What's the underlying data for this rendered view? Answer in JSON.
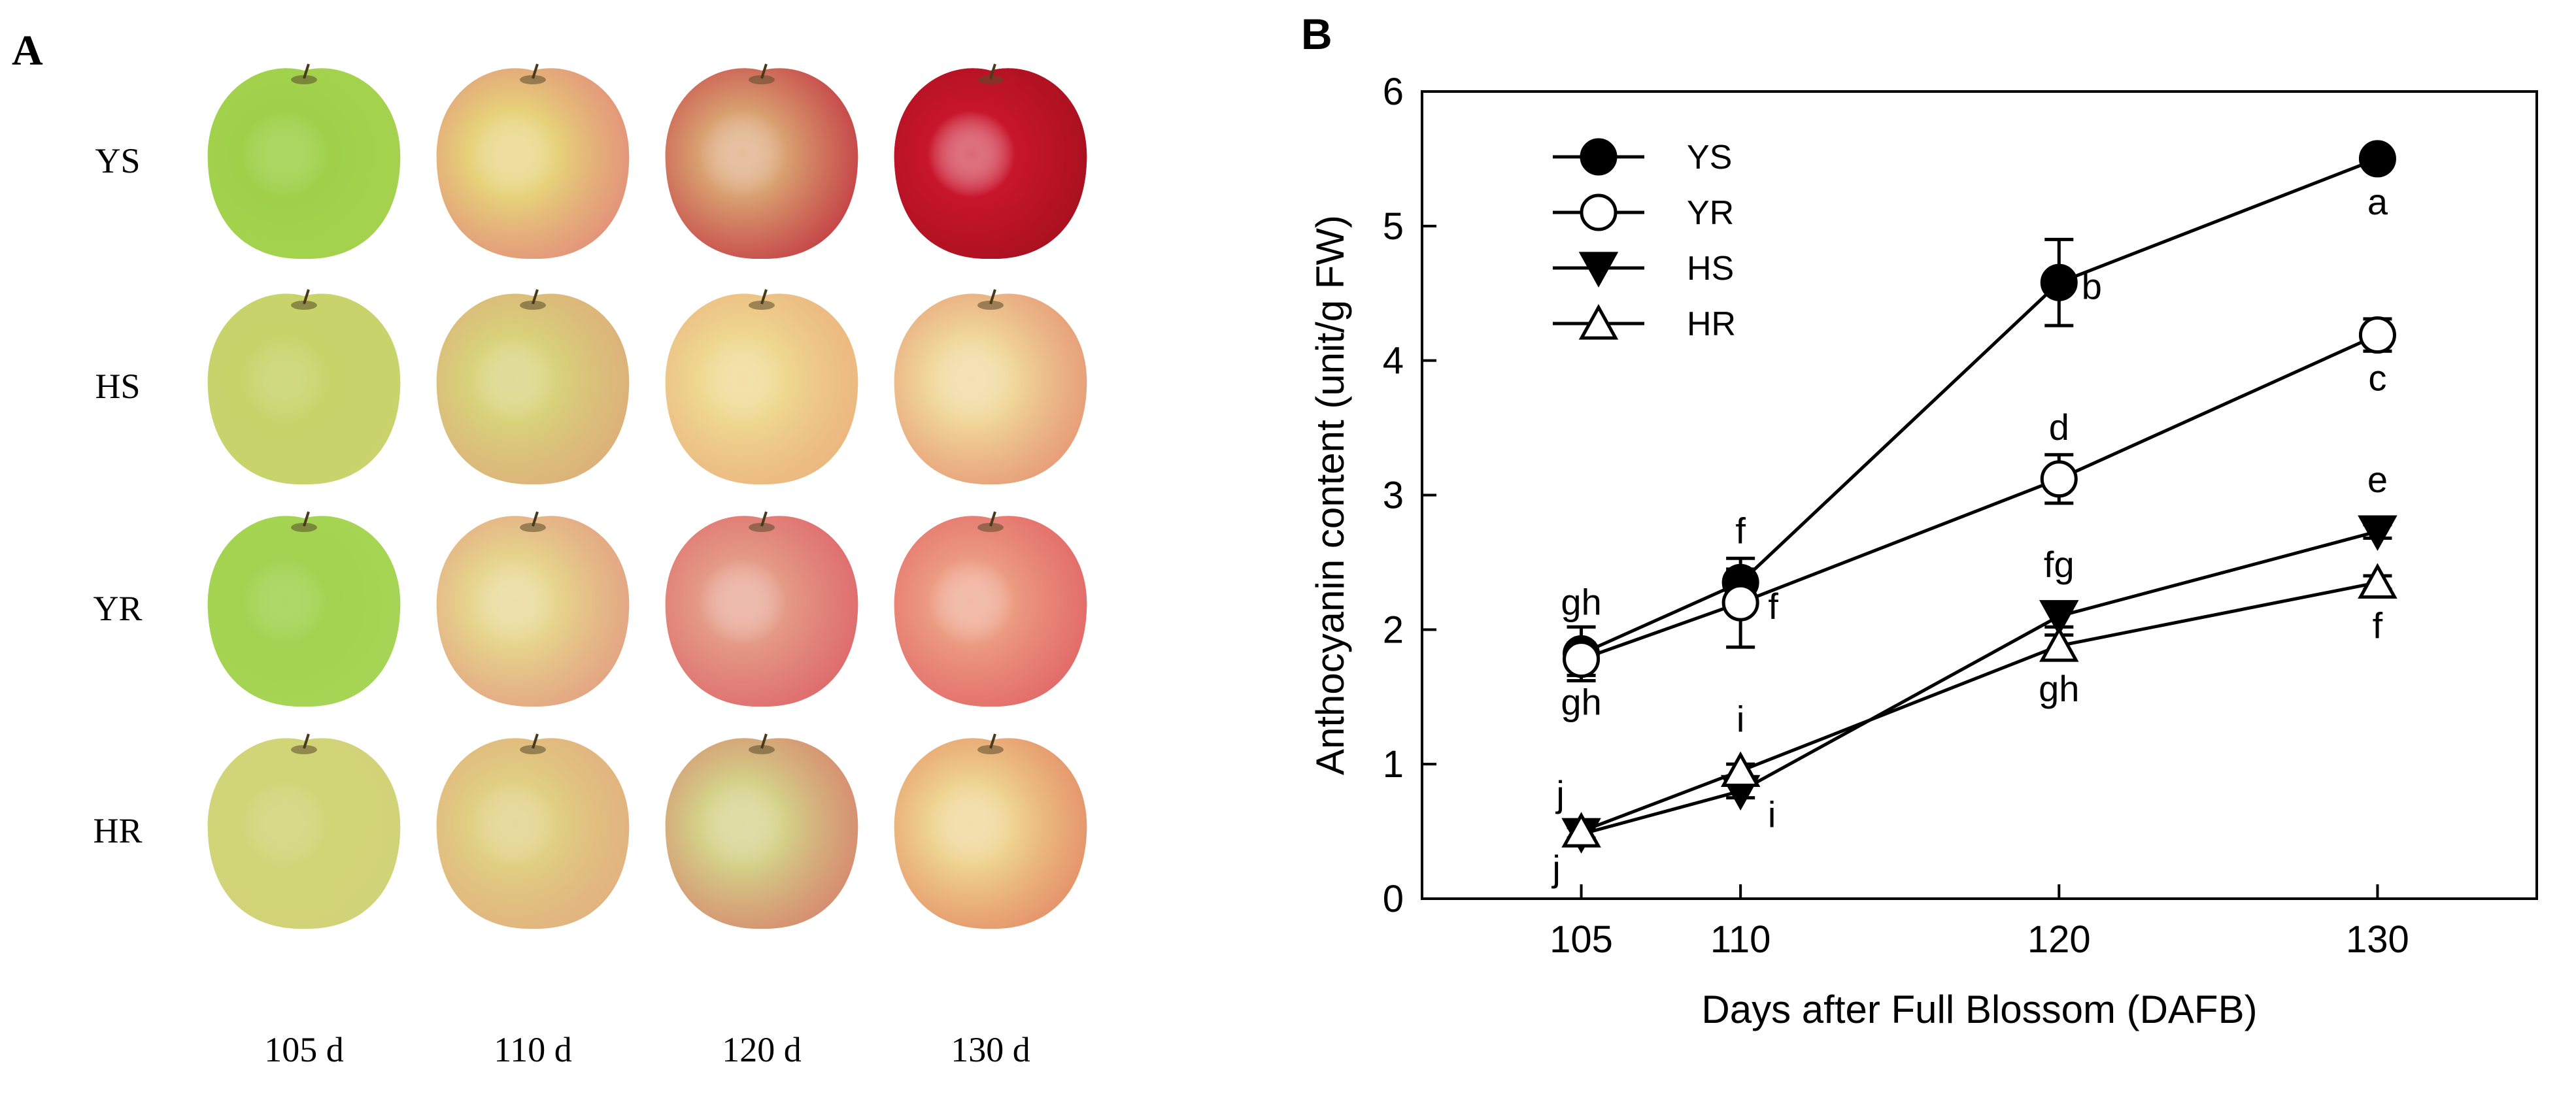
{
  "panel_a": {
    "label": "A",
    "rows": [
      "YS",
      "HS",
      "YR",
      "HR"
    ],
    "columns": [
      "105 d",
      "110 d",
      "120 d",
      "130 d"
    ],
    "apple_colors": [
      [
        {
          "base": "#9fd04a",
          "blush": "#b7dc5c",
          "amount": 0.0
        },
        {
          "base": "#e6d27a",
          "blush": "#e1627a",
          "amount": 0.55
        },
        {
          "base": "#d9a070",
          "blush": "#c0283c",
          "amount": 0.8
        },
        {
          "base": "#c8162c",
          "blush": "#a8101e",
          "amount": 1.0
        }
      ],
      [
        {
          "base": "#c8d36a",
          "blush": "#cfd374",
          "amount": 0.0
        },
        {
          "base": "#d8d27a",
          "blush": "#e2897a",
          "amount": 0.4
        },
        {
          "base": "#eed890",
          "blush": "#e8896a",
          "amount": 0.35
        },
        {
          "base": "#f0d79a",
          "blush": "#df6a5a",
          "amount": 0.5
        }
      ],
      [
        {
          "base": "#a2d250",
          "blush": "#b6dc62",
          "amount": 0.0
        },
        {
          "base": "#e6d58c",
          "blush": "#e27f7c",
          "amount": 0.55
        },
        {
          "base": "#e49a86",
          "blush": "#dc5a64",
          "amount": 0.75
        },
        {
          "base": "#ec9a80",
          "blush": "#df5c62",
          "amount": 0.8
        }
      ],
      [
        {
          "base": "#d2d478",
          "blush": "#cfd07a",
          "amount": 0.0
        },
        {
          "base": "#e0cf82",
          "blush": "#e48a7a",
          "amount": 0.35
        },
        {
          "base": "#d4d088",
          "blush": "#d8505a",
          "amount": 0.5
        },
        {
          "base": "#eed28e",
          "blush": "#e06a52",
          "amount": 0.6
        }
      ]
    ]
  },
  "chart_data": {
    "panel_label": "B",
    "type": "line",
    "xlabel": "Days after Full Blossom (DAFB)",
    "ylabel": "Anthocyanin content (unit/g FW)",
    "x": [
      105,
      110,
      120,
      130
    ],
    "xlim": [
      100,
      135
    ],
    "ylim": [
      0,
      6
    ],
    "yticks": [
      0,
      1,
      2,
      3,
      4,
      5,
      6
    ],
    "xticks": [
      105,
      110,
      120,
      130
    ],
    "legend_position": "top-left",
    "series": [
      {
        "name": "YS",
        "marker": "circle-filled",
        "values": [
          1.82,
          2.35,
          4.58,
          5.5
        ],
        "errors": [
          0.2,
          0.1,
          0.32,
          0.05
        ],
        "letters": [
          {
            "text": "gh",
            "dx": 0,
            "dy": -1,
            "side": "above"
          },
          {
            "text": "f",
            "side": "above"
          },
          {
            "text": "b",
            "side": "right"
          },
          {
            "text": "a",
            "side": "below"
          }
        ]
      },
      {
        "name": "YR",
        "marker": "circle-open",
        "values": [
          1.78,
          2.2,
          3.12,
          4.19
        ],
        "errors": [
          0.12,
          0.33,
          0.18,
          0.12
        ],
        "letters": [
          {
            "text": "gh",
            "side": "below"
          },
          {
            "text": "f",
            "side": "right"
          },
          {
            "text": "d",
            "side": "above"
          },
          {
            "text": "c",
            "side": "below"
          }
        ]
      },
      {
        "name": "HS",
        "marker": "triangle-down-filled",
        "values": [
          0.48,
          0.8,
          2.1,
          2.73
        ],
        "errors": [
          0.05,
          0.05,
          0.08,
          0.05
        ],
        "letters": [
          {
            "text": "j",
            "side": "leftbelow"
          },
          {
            "text": "i",
            "side": "rightbelow"
          },
          {
            "text": "fg",
            "side": "above"
          },
          {
            "text": "e",
            "side": "above"
          }
        ]
      },
      {
        "name": "HR",
        "marker": "triangle-up-open",
        "values": [
          0.5,
          0.95,
          1.88,
          2.35
        ],
        "errors": [
          0.05,
          0.05,
          0.08,
          0.05
        ],
        "letters": [
          {
            "text": "j",
            "side": "leftabove"
          },
          {
            "text": "i",
            "side": "above"
          },
          {
            "text": "gh",
            "side": "below"
          },
          {
            "text": "f",
            "side": "below"
          }
        ]
      }
    ]
  }
}
